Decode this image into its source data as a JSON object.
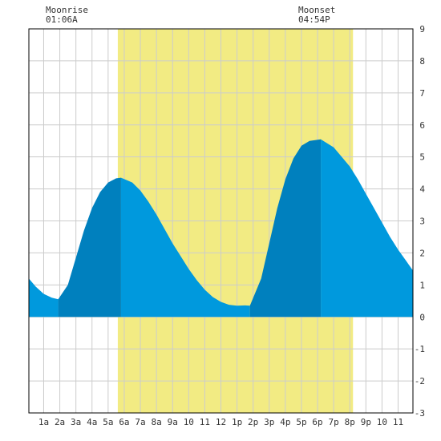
{
  "moon": {
    "rise_label": "Moonrise",
    "rise_time": "01:06A",
    "set_label": "Moonset",
    "set_time": "04:54P"
  },
  "chart_data": {
    "type": "area",
    "title": "",
    "xlabel": "",
    "ylabel": "",
    "x_tick_labels": [
      "1a",
      "2a",
      "3a",
      "4a",
      "5a",
      "6a",
      "7a",
      "8a",
      "9a",
      "10",
      "11",
      "12",
      "1p",
      "2p",
      "3p",
      "4p",
      "5p",
      "6p",
      "7p",
      "8p",
      "9p",
      "10",
      "11"
    ],
    "y_tick_labels": [
      "-3",
      "-2",
      "-1",
      "0",
      "1",
      "2",
      "3",
      "4",
      "5",
      "6",
      "7",
      "8",
      "9"
    ],
    "xlim": [
      0.08,
      23.92
    ],
    "ylim": [
      -3,
      9
    ],
    "grid": true,
    "daylight": {
      "start_hour": 5.6,
      "end_hour": 20.2
    },
    "extremes": [
      {
        "type": "low",
        "hour": 1.9,
        "height": 0.55
      },
      {
        "type": "high",
        "hour": 5.8,
        "height": 4.35
      },
      {
        "type": "low",
        "hour": 13.8,
        "height": 0.35
      },
      {
        "type": "high",
        "hour": 18.2,
        "height": 5.55
      }
    ],
    "series": [
      {
        "x": [
          0.08,
          0.5,
          1.0,
          1.5,
          1.9,
          2.5,
          3.0,
          3.5,
          4.0,
          4.5,
          5.0,
          5.5,
          5.8,
          6.5,
          7.0,
          7.5,
          8.0,
          8.5,
          9.0,
          9.5,
          10.0,
          10.5,
          11.0,
          11.5,
          12.0,
          12.5,
          13.0,
          13.5,
          13.8,
          14.5,
          15.0,
          15.5,
          16.0,
          16.5,
          17.0,
          17.5,
          18.2,
          19.0,
          19.5,
          20.0,
          20.5,
          21.0,
          21.5,
          22.0,
          22.5,
          23.0,
          23.5,
          23.92
        ],
        "y": [
          1.2,
          0.95,
          0.72,
          0.6,
          0.55,
          1.0,
          1.85,
          2.7,
          3.4,
          3.9,
          4.2,
          4.33,
          4.35,
          4.2,
          3.95,
          3.6,
          3.2,
          2.75,
          2.3,
          1.9,
          1.5,
          1.15,
          0.85,
          0.62,
          0.47,
          0.38,
          0.35,
          0.36,
          0.35,
          1.2,
          2.3,
          3.4,
          4.3,
          4.95,
          5.35,
          5.5,
          5.55,
          5.3,
          5.0,
          4.7,
          4.3,
          3.85,
          3.4,
          2.95,
          2.5,
          2.1,
          1.75,
          1.45
        ]
      }
    ],
    "colors": {
      "daylight": "#f2eb83",
      "rising": "#0080be",
      "falling": "#0099dd",
      "grid": "#cccccc",
      "frame": "#000000"
    }
  }
}
